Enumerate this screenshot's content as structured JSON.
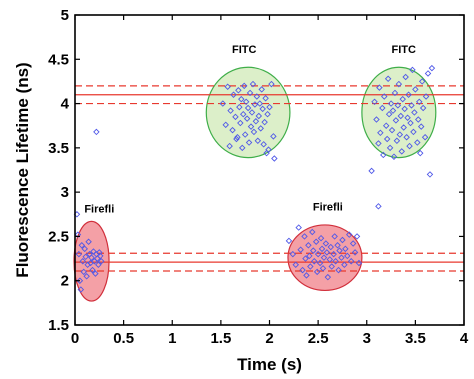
{
  "chart_data": {
    "type": "scatter",
    "title": "",
    "xlabel": "Time (s)",
    "ylabel": "Fluorescence Lifetime (ns)",
    "xlim": [
      0,
      4
    ],
    "ylim": [
      1.5,
      5
    ],
    "x_ticks": [
      "0",
      "0.5",
      "1",
      "1.5",
      "2",
      "2.5",
      "3",
      "3.5",
      "4"
    ],
    "y_ticks": [
      "1.5",
      "2",
      "2.5",
      "3",
      "3.5",
      "4",
      "4.5",
      "5"
    ],
    "grid": false,
    "legend": "none",
    "reference_lines": [
      {
        "y": 4.2,
        "style": "dashed",
        "color": "#e8392f"
      },
      {
        "y": 4.1,
        "style": "solid",
        "color": "#e8392f"
      },
      {
        "y": 4.0,
        "style": "dashed",
        "color": "#e8392f"
      },
      {
        "y": 2.31,
        "style": "dashed",
        "color": "#e8392f"
      },
      {
        "y": 2.21,
        "style": "solid",
        "color": "#e8392f"
      },
      {
        "y": 2.11,
        "style": "dashed",
        "color": "#e8392f"
      }
    ],
    "regions": [
      {
        "label": "FITC",
        "cx": 1.78,
        "cy": 3.9,
        "rx": 0.43,
        "ry": 0.51,
        "fill": "#dcefc9",
        "stroke": "#3fae49",
        "label_x": 1.74,
        "label_y": 4.57
      },
      {
        "label": "FITC",
        "cx": 3.33,
        "cy": 3.9,
        "rx": 0.38,
        "ry": 0.51,
        "fill": "#dcefc9",
        "stroke": "#3fae49",
        "label_x": 3.38,
        "label_y": 4.57
      },
      {
        "label": "Firefli",
        "cx": 0.17,
        "cy": 2.22,
        "rx": 0.18,
        "ry": 0.45,
        "fill": "#f4a0a6",
        "stroke": "#d12f3b",
        "label_x": 0.25,
        "label_y": 2.77
      },
      {
        "label": "Firefli",
        "cx": 2.57,
        "cy": 2.26,
        "rx": 0.38,
        "ry": 0.37,
        "fill": "#f4a0a6",
        "stroke": "#d12f3b",
        "label_x": 2.6,
        "label_y": 2.79
      }
    ],
    "series": [
      {
        "marker": "diamond-open",
        "color": "#4f58e8",
        "points": [
          [
            1.52,
            4.0
          ],
          [
            1.57,
            4.19
          ],
          [
            1.6,
            3.92
          ],
          [
            1.62,
            3.7
          ],
          [
            1.63,
            4.1
          ],
          [
            1.65,
            3.85
          ],
          [
            1.66,
            3.6
          ],
          [
            1.67,
            3.62
          ],
          [
            1.68,
            4.15
          ],
          [
            1.69,
            3.96
          ],
          [
            1.7,
            3.78
          ],
          [
            1.71,
            4.05
          ],
          [
            1.72,
            3.5
          ],
          [
            1.73,
            3.88
          ],
          [
            1.74,
            4.2
          ],
          [
            1.75,
            3.65
          ],
          [
            1.76,
            4.02
          ],
          [
            1.77,
            3.83
          ],
          [
            1.78,
            3.95
          ],
          [
            1.79,
            3.56
          ],
          [
            1.8,
            4.12
          ],
          [
            1.81,
            3.74
          ],
          [
            1.82,
            3.9
          ],
          [
            1.83,
            4.22
          ],
          [
            1.84,
            3.68
          ],
          [
            1.85,
            3.99
          ],
          [
            1.86,
            3.8
          ],
          [
            1.87,
            4.08
          ],
          [
            1.88,
            3.58
          ],
          [
            1.89,
            3.86
          ],
          [
            1.9,
            4.0
          ],
          [
            1.91,
            3.72
          ],
          [
            1.92,
            4.16
          ],
          [
            1.93,
            3.94
          ],
          [
            1.94,
            3.54
          ],
          [
            1.95,
            3.79
          ],
          [
            1.96,
            4.06
          ],
          [
            1.97,
            3.44
          ],
          [
            1.98,
            3.88
          ],
          [
            1.99,
            3.48
          ],
          [
            2.0,
            3.96
          ],
          [
            2.02,
            4.22
          ],
          [
            2.04,
            3.63
          ],
          [
            2.05,
            3.38
          ],
          [
            1.55,
            3.76
          ],
          [
            1.59,
            3.52
          ],
          [
            3.08,
            4.02
          ],
          [
            3.1,
            3.82
          ],
          [
            3.12,
            3.55
          ],
          [
            3.13,
            4.18
          ],
          [
            3.14,
            3.67
          ],
          [
            3.16,
            3.95
          ],
          [
            3.17,
            3.42
          ],
          [
            3.18,
            4.08
          ],
          [
            3.2,
            3.75
          ],
          [
            3.21,
            3.6
          ],
          [
            3.22,
            4.28
          ],
          [
            3.23,
            3.88
          ],
          [
            3.24,
            3.5
          ],
          [
            3.25,
            4.0
          ],
          [
            3.26,
            3.7
          ],
          [
            3.27,
            3.92
          ],
          [
            3.28,
            3.4
          ],
          [
            3.29,
            4.12
          ],
          [
            3.3,
            3.81
          ],
          [
            3.31,
            3.58
          ],
          [
            3.32,
            3.98
          ],
          [
            3.33,
            4.22
          ],
          [
            3.34,
            3.65
          ],
          [
            3.35,
            3.86
          ],
          [
            3.36,
            3.46
          ],
          [
            3.37,
            4.05
          ],
          [
            3.38,
            3.73
          ],
          [
            3.39,
            3.94
          ],
          [
            3.4,
            4.3
          ],
          [
            3.41,
            3.62
          ],
          [
            3.42,
            3.84
          ],
          [
            3.43,
            4.1
          ],
          [
            3.44,
            3.52
          ],
          [
            3.45,
            3.78
          ],
          [
            3.46,
            3.98
          ],
          [
            3.47,
            4.38
          ],
          [
            3.48,
            3.68
          ],
          [
            3.49,
            3.9
          ],
          [
            3.5,
            4.16
          ],
          [
            3.52,
            3.56
          ],
          [
            3.53,
            3.82
          ],
          [
            3.54,
            4.02
          ],
          [
            3.55,
            3.44
          ],
          [
            3.56,
            3.74
          ],
          [
            3.57,
            4.25
          ],
          [
            3.58,
            3.95
          ],
          [
            3.6,
            3.62
          ],
          [
            3.61,
            4.08
          ],
          [
            3.63,
            4.34
          ],
          [
            3.65,
            3.2
          ],
          [
            3.67,
            4.4
          ],
          [
            3.05,
            3.24
          ],
          [
            3.12,
            2.84
          ],
          [
            0.02,
            2.75
          ],
          [
            0.03,
            2.52
          ],
          [
            0.04,
            2.3
          ],
          [
            0.05,
            2.0
          ],
          [
            0.06,
            1.9
          ],
          [
            0.07,
            2.4
          ],
          [
            0.08,
            2.22
          ],
          [
            0.09,
            2.1
          ],
          [
            0.1,
            2.36
          ],
          [
            0.11,
            2.27
          ],
          [
            0.12,
            2.05
          ],
          [
            0.13,
            2.18
          ],
          [
            0.14,
            2.44
          ],
          [
            0.15,
            2.3
          ],
          [
            0.16,
            2.2
          ],
          [
            0.17,
            2.26
          ],
          [
            0.18,
            2.12
          ],
          [
            0.19,
            2.33
          ],
          [
            0.2,
            2.22
          ],
          [
            0.21,
            2.08
          ],
          [
            0.22,
            2.3
          ],
          [
            0.23,
            2.25
          ],
          [
            0.24,
            2.18
          ],
          [
            0.25,
            2.32
          ],
          [
            0.26,
            2.28
          ],
          [
            0.27,
            2.22
          ],
          [
            0.22,
            3.68
          ],
          [
            2.2,
            2.45
          ],
          [
            2.24,
            2.3
          ],
          [
            2.27,
            2.18
          ],
          [
            2.3,
            2.6
          ],
          [
            2.32,
            2.35
          ],
          [
            2.34,
            2.12
          ],
          [
            2.36,
            2.5
          ],
          [
            2.37,
            2.25
          ],
          [
            2.38,
            2.06
          ],
          [
            2.4,
            2.4
          ],
          [
            2.41,
            2.28
          ],
          [
            2.42,
            2.16
          ],
          [
            2.44,
            2.55
          ],
          [
            2.45,
            2.34
          ],
          [
            2.46,
            2.22
          ],
          [
            2.48,
            2.44
          ],
          [
            2.49,
            2.1
          ],
          [
            2.5,
            2.3
          ],
          [
            2.52,
            2.2
          ],
          [
            2.53,
            2.48
          ],
          [
            2.54,
            2.36
          ],
          [
            2.55,
            2.14
          ],
          [
            2.56,
            2.26
          ],
          [
            2.58,
            2.42
          ],
          [
            2.59,
            2.32
          ],
          [
            2.6,
            2.04
          ],
          [
            2.62,
            2.24
          ],
          [
            2.63,
            2.38
          ],
          [
            2.64,
            2.16
          ],
          [
            2.66,
            2.3
          ],
          [
            2.67,
            2.5
          ],
          [
            2.68,
            2.22
          ],
          [
            2.7,
            2.4
          ],
          [
            2.71,
            2.12
          ],
          [
            2.72,
            2.34
          ],
          [
            2.74,
            2.26
          ],
          [
            2.75,
            2.46
          ],
          [
            2.77,
            2.18
          ],
          [
            2.78,
            2.36
          ],
          [
            2.8,
            2.28
          ],
          [
            2.82,
            2.52
          ],
          [
            2.84,
            2.22
          ],
          [
            2.86,
            2.42
          ],
          [
            2.88,
            2.32
          ],
          [
            2.9,
            2.5
          ],
          [
            2.92,
            2.2
          ]
        ]
      }
    ]
  }
}
